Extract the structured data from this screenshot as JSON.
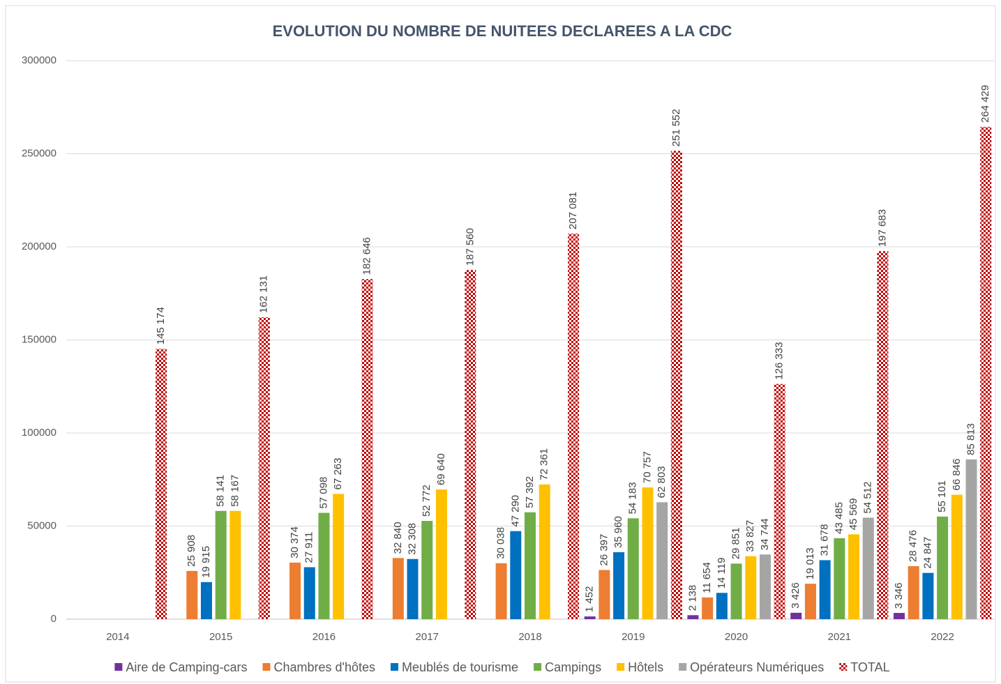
{
  "chart_data": {
    "type": "bar",
    "title": "EVOLUTION DU NOMBRE DE NUITEES DECLAREES A LA CDC",
    "categories": [
      "2014",
      "2015",
      "2016",
      "2017",
      "2018",
      "2019",
      "2020",
      "2021",
      "2022"
    ],
    "ylim": [
      0,
      300000
    ],
    "yticks": [
      0,
      50000,
      100000,
      150000,
      200000,
      250000,
      300000
    ],
    "grid": true,
    "legend": "bottom",
    "series": [
      {
        "name": "Aire de Camping-cars",
        "color": "#7030a0",
        "values": [
          null,
          null,
          null,
          null,
          null,
          1452,
          2138,
          3426,
          3346
        ],
        "value_labels": [
          null,
          null,
          null,
          null,
          null,
          "1 452",
          "2 138",
          "3 426",
          "3 346"
        ]
      },
      {
        "name": "Chambres d'hôtes",
        "color": "#ed7d31",
        "values": [
          null,
          25908,
          30374,
          32840,
          30038,
          26397,
          11654,
          19013,
          28476
        ],
        "value_labels": [
          null,
          "25 908",
          "30 374",
          "32 840",
          "30 038",
          "26 397",
          "11 654",
          "19 013",
          "28 476"
        ]
      },
      {
        "name": "Meublés de tourisme",
        "color": "#0070c0",
        "values": [
          null,
          19915,
          27911,
          32308,
          47290,
          35960,
          14119,
          31678,
          24847
        ],
        "value_labels": [
          null,
          "19 915",
          "27 911",
          "32 308",
          "47 290",
          "35 960",
          "14 119",
          "31 678",
          "24 847"
        ]
      },
      {
        "name": "Campings",
        "color": "#70ad47",
        "values": [
          null,
          58141,
          57098,
          52772,
          57392,
          54183,
          29851,
          43485,
          55101
        ],
        "value_labels": [
          null,
          "58 141",
          "57 098",
          "52 772",
          "57 392",
          "54 183",
          "29 851",
          "43 485",
          "55 101"
        ]
      },
      {
        "name": "Hôtels",
        "color": "#ffc000",
        "values": [
          null,
          58167,
          67263,
          69640,
          72361,
          70757,
          33827,
          45569,
          66846
        ],
        "value_labels": [
          null,
          "58 167",
          "67 263",
          "69 640",
          "72 361",
          "70 757",
          "33 827",
          "45 569",
          "66 846"
        ]
      },
      {
        "name": "Opérateurs Numériques",
        "color": "#a5a5a5",
        "values": [
          null,
          null,
          null,
          null,
          null,
          62803,
          34744,
          54512,
          85813
        ],
        "value_labels": [
          null,
          null,
          null,
          null,
          null,
          "62 803",
          "34 744",
          "54 512",
          "85 813"
        ]
      },
      {
        "name": "TOTAL",
        "color": "#c00000",
        "pattern": "checkerboard",
        "values": [
          145174,
          162131,
          182646,
          187560,
          207081,
          251552,
          126333,
          197683,
          264429
        ],
        "value_labels": [
          "145 174",
          "162 131",
          "182 646",
          "187 560",
          "207 081",
          "251 552",
          "126 333",
          "197 683",
          "264 429"
        ]
      }
    ]
  }
}
